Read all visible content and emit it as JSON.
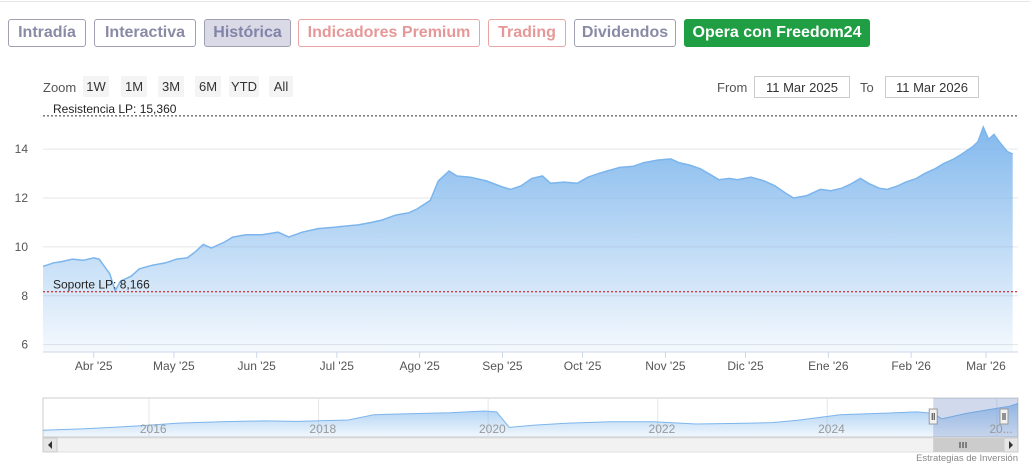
{
  "tabs": [
    {
      "label": "Intradía"
    },
    {
      "label": "Interactiva"
    },
    {
      "label": "Histórica"
    },
    {
      "label": "Indicadores Premium"
    },
    {
      "label": "Trading"
    },
    {
      "label": "Dividendos"
    },
    {
      "label": "Opera con Freedom24"
    }
  ],
  "range_selector": {
    "zoom_label": "Zoom",
    "buttons": [
      "1W",
      "1M",
      "3M",
      "6M",
      "YTD",
      "All"
    ],
    "from_label": "From",
    "from_value": "11 Mar 2025",
    "to_label": "To",
    "to_value": "11 Mar 2026"
  },
  "credits": "Estrategias de Inversión",
  "colors": {
    "area_line": "#7cb5ec",
    "tab_border": "#9fa0b3",
    "tab_active_bg": "#d9dae6",
    "premium": "#e8a3a3",
    "cta": "#1f9e43",
    "support_line": "#cc0000"
  },
  "chart_data": {
    "type": "area",
    "yticks": [
      6,
      8,
      10,
      12,
      14
    ],
    "ylim": [
      5.7,
      15.6
    ],
    "xlim": [
      "2025-03-13",
      "2026-03-13"
    ],
    "xticks": [
      {
        "label": "Abr '25",
        "date": "2025-04-01"
      },
      {
        "label": "May '25",
        "date": "2025-05-01"
      },
      {
        "label": "Jun '25",
        "date": "2025-06-01"
      },
      {
        "label": "Jul '25",
        "date": "2025-07-01"
      },
      {
        "label": "Ago '25",
        "date": "2025-08-01"
      },
      {
        "label": "Sep '25",
        "date": "2025-09-01"
      },
      {
        "label": "Oct '25",
        "date": "2025-10-01"
      },
      {
        "label": "Nov '25",
        "date": "2025-11-01"
      },
      {
        "label": "Dic '25",
        "date": "2025-12-01"
      },
      {
        "label": "Ene '26",
        "date": "2026-01-01"
      },
      {
        "label": "Feb '26",
        "date": "2026-02-01"
      },
      {
        "label": "Mar '26",
        "date": "2026-03-01"
      }
    ],
    "series": [
      {
        "points": [
          [
            "2025-03-13",
            9.2
          ],
          [
            "2025-03-17",
            9.35
          ],
          [
            "2025-03-20",
            9.4
          ],
          [
            "2025-03-24",
            9.5
          ],
          [
            "2025-03-28",
            9.45
          ],
          [
            "2025-04-01",
            9.55
          ],
          [
            "2025-04-03",
            9.5
          ],
          [
            "2025-04-07",
            8.9
          ],
          [
            "2025-04-09",
            8.2
          ],
          [
            "2025-04-11",
            8.6
          ],
          [
            "2025-04-15",
            8.8
          ],
          [
            "2025-04-18",
            9.1
          ],
          [
            "2025-04-23",
            9.25
          ],
          [
            "2025-04-28",
            9.35
          ],
          [
            "2025-05-02",
            9.5
          ],
          [
            "2025-05-06",
            9.55
          ],
          [
            "2025-05-09",
            9.8
          ],
          [
            "2025-05-12",
            10.1
          ],
          [
            "2025-05-15",
            9.95
          ],
          [
            "2025-05-20",
            10.2
          ],
          [
            "2025-05-23",
            10.4
          ],
          [
            "2025-05-28",
            10.5
          ],
          [
            "2025-06-03",
            10.5
          ],
          [
            "2025-06-09",
            10.6
          ],
          [
            "2025-06-13",
            10.4
          ],
          [
            "2025-06-18",
            10.6
          ],
          [
            "2025-06-24",
            10.75
          ],
          [
            "2025-06-30",
            10.8
          ],
          [
            "2025-07-04",
            10.85
          ],
          [
            "2025-07-09",
            10.9
          ],
          [
            "2025-07-14",
            11.0
          ],
          [
            "2025-07-18",
            11.1
          ],
          [
            "2025-07-23",
            11.3
          ],
          [
            "2025-07-28",
            11.4
          ],
          [
            "2025-07-31",
            11.55
          ],
          [
            "2025-08-05",
            11.9
          ],
          [
            "2025-08-08",
            12.7
          ],
          [
            "2025-08-12",
            13.1
          ],
          [
            "2025-08-15",
            12.9
          ],
          [
            "2025-08-20",
            12.85
          ],
          [
            "2025-08-26",
            12.7
          ],
          [
            "2025-09-01",
            12.45
          ],
          [
            "2025-09-04",
            12.35
          ],
          [
            "2025-09-08",
            12.5
          ],
          [
            "2025-09-12",
            12.8
          ],
          [
            "2025-09-16",
            12.9
          ],
          [
            "2025-09-19",
            12.6
          ],
          [
            "2025-09-24",
            12.65
          ],
          [
            "2025-09-29",
            12.6
          ],
          [
            "2025-10-03",
            12.85
          ],
          [
            "2025-10-07",
            13.0
          ],
          [
            "2025-10-10",
            13.1
          ],
          [
            "2025-10-15",
            13.25
          ],
          [
            "2025-10-20",
            13.3
          ],
          [
            "2025-10-24",
            13.45
          ],
          [
            "2025-10-29",
            13.55
          ],
          [
            "2025-11-03",
            13.6
          ],
          [
            "2025-11-06",
            13.45
          ],
          [
            "2025-11-10",
            13.35
          ],
          [
            "2025-11-14",
            13.2
          ],
          [
            "2025-11-18",
            12.95
          ],
          [
            "2025-11-21",
            12.75
          ],
          [
            "2025-11-25",
            12.8
          ],
          [
            "2025-11-28",
            12.75
          ],
          [
            "2025-12-03",
            12.85
          ],
          [
            "2025-12-08",
            12.7
          ],
          [
            "2025-12-12",
            12.5
          ],
          [
            "2025-12-16",
            12.2
          ],
          [
            "2025-12-19",
            12.0
          ],
          [
            "2025-12-24",
            12.1
          ],
          [
            "2025-12-29",
            12.35
          ],
          [
            "2026-01-02",
            12.3
          ],
          [
            "2026-01-06",
            12.4
          ],
          [
            "2026-01-09",
            12.55
          ],
          [
            "2026-01-13",
            12.8
          ],
          [
            "2026-01-16",
            12.6
          ],
          [
            "2026-01-20",
            12.4
          ],
          [
            "2026-01-23",
            12.35
          ],
          [
            "2026-01-27",
            12.5
          ],
          [
            "2026-01-30",
            12.65
          ],
          [
            "2026-02-03",
            12.8
          ],
          [
            "2026-02-06",
            13.0
          ],
          [
            "2026-02-10",
            13.2
          ],
          [
            "2026-02-13",
            13.4
          ],
          [
            "2026-02-17",
            13.6
          ],
          [
            "2026-02-20",
            13.8
          ],
          [
            "2026-02-24",
            14.1
          ],
          [
            "2026-02-26",
            14.3
          ],
          [
            "2026-02-28",
            14.9
          ],
          [
            "2026-03-02",
            14.4
          ],
          [
            "2026-03-04",
            14.6
          ],
          [
            "2026-03-06",
            14.3
          ],
          [
            "2026-03-09",
            13.9
          ],
          [
            "2026-03-11",
            13.8
          ]
        ]
      }
    ],
    "reference_lines": [
      {
        "label": "Resistencia LP: 15,360",
        "value": 15.36,
        "style": "dashed",
        "color": "#333333"
      },
      {
        "label": "Soporte LP: 8,166",
        "value": 8.166,
        "style": "dashed",
        "color": "#cc0000"
      }
    ],
    "navigator": {
      "year_labels": [
        "2016",
        "2018",
        "2020",
        "2022",
        "2024",
        "20..."
      ],
      "xlim": [
        2014.7,
        2026.2
      ],
      "selected_range": [
        2025.2,
        2026.2
      ],
      "points": [
        [
          2014.7,
          6
        ],
        [
          2015.2,
          6.5
        ],
        [
          2015.8,
          7.5
        ],
        [
          2016.3,
          8.5
        ],
        [
          2016.8,
          9.0
        ],
        [
          2017.3,
          9.3
        ],
        [
          2017.7,
          9.1
        ],
        [
          2018.3,
          9.6
        ],
        [
          2018.6,
          11.5
        ],
        [
          2019.0,
          11.8
        ],
        [
          2019.5,
          12.2
        ],
        [
          2019.9,
          12.8
        ],
        [
          2020.05,
          12.5
        ],
        [
          2020.2,
          7.0
        ],
        [
          2020.5,
          7.8
        ],
        [
          2020.9,
          8.5
        ],
        [
          2021.4,
          9.0
        ],
        [
          2021.9,
          9.0
        ],
        [
          2022.4,
          8.2
        ],
        [
          2022.9,
          8.4
        ],
        [
          2023.3,
          8.7
        ],
        [
          2023.6,
          9.5
        ],
        [
          2024.1,
          11.5
        ],
        [
          2024.6,
          12.0
        ],
        [
          2025.0,
          12.5
        ],
        [
          2025.2,
          12.0
        ],
        [
          2025.3,
          10.0
        ],
        [
          2025.6,
          12.0
        ],
        [
          2025.9,
          13.5
        ],
        [
          2026.1,
          14.5
        ],
        [
          2026.2,
          15.5
        ]
      ]
    }
  }
}
